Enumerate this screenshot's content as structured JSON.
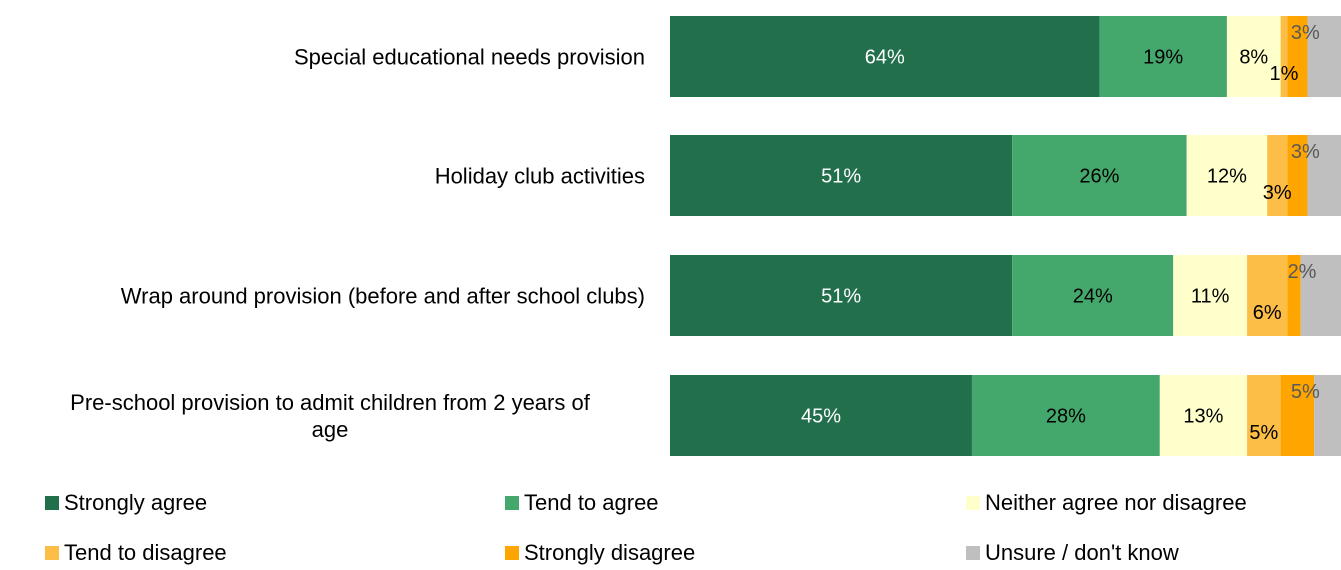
{
  "chart_data": {
    "type": "bar",
    "orientation": "horizontal",
    "stacked": true,
    "categories": [
      "Special educational needs provision",
      "Holiday club activities",
      "Wrap around provision (before and after school clubs)",
      "Pre-school provision to admit children from 2 years of age"
    ],
    "series": [
      {
        "name": "Strongly agree",
        "color": "#226f4b",
        "text_color": "#ffffff",
        "values": [
          64,
          51,
          51,
          45
        ],
        "labels": [
          "64%",
          "51%",
          "51%",
          "45%"
        ]
      },
      {
        "name": "Tend to agree",
        "color": "#44a86c",
        "text_color": "#000000",
        "values": [
          19,
          26,
          24,
          28
        ],
        "labels": [
          "19%",
          "26%",
          "24%",
          "28%"
        ]
      },
      {
        "name": "Neither agree nor disagree",
        "color": "#ffffcc",
        "text_color": "#000000",
        "values": [
          8,
          12,
          11,
          13
        ],
        "labels": [
          "8%",
          "12%",
          "11%",
          "13%"
        ]
      },
      {
        "name": "Tend to disagree",
        "color": "#fdbe47",
        "text_color": "#000000",
        "values": [
          1,
          3,
          6,
          5
        ],
        "labels": [
          "1%",
          "3%",
          "6%",
          "5%"
        ]
      },
      {
        "name": "Strongly disagree",
        "color": "#ffa500",
        "text_color": "#000000",
        "values": [
          3,
          3,
          2,
          5
        ],
        "labels": [
          "3%",
          "3%",
          "2%",
          "5%"
        ]
      },
      {
        "name": "Unsure / don't know",
        "color": "#bfbfbf",
        "text_color": "#000000",
        "values": [
          5,
          5,
          6,
          4
        ],
        "labels": [
          "",
          "",
          "",
          ""
        ]
      }
    ],
    "xlim": [
      0,
      100
    ],
    "grid": false,
    "legend_position": "bottom"
  }
}
